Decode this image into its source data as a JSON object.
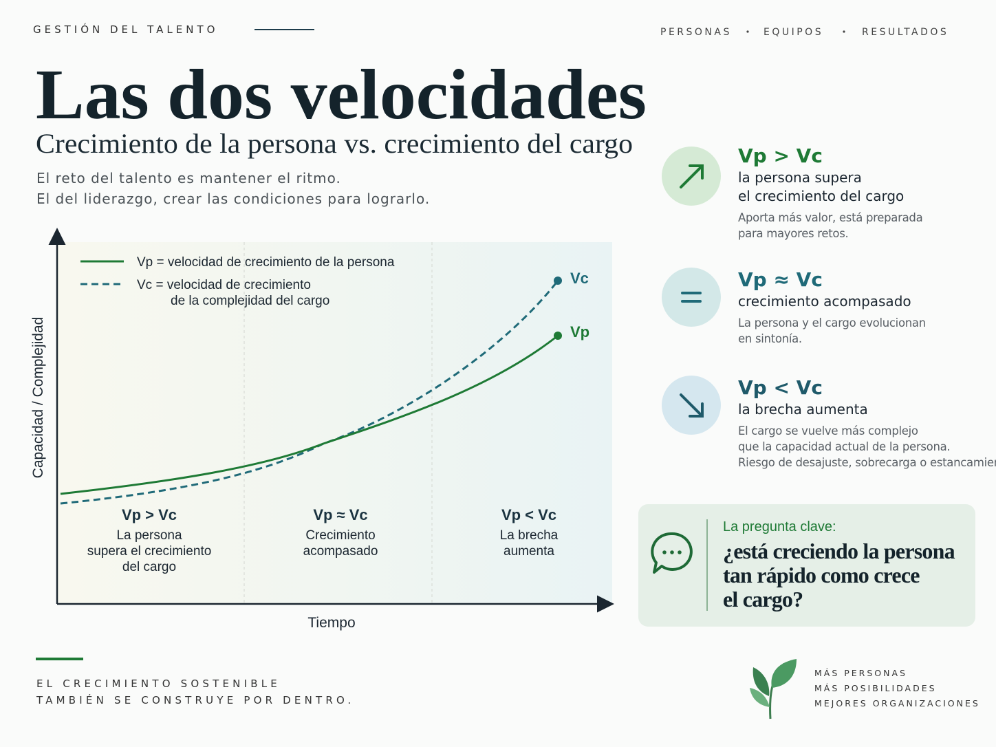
{
  "header": {
    "kicker": "GESTIÓN DEL TALENTO",
    "tags": [
      "PERSONAS",
      "EQUIPOS",
      "RESULTADOS"
    ],
    "title": "Las dos velocidades",
    "subtitle": "Crecimiento de la persona vs. crecimiento del cargo",
    "intro": [
      "El reto del talento es mantener el ritmo.",
      "El del liderazgo, crear las condiciones para lograrlo."
    ]
  },
  "chart": {
    "legend": [
      [
        "Vp = velocidad de crecimiento de la persona"
      ],
      [
        "Vc = velocidad de crecimiento",
        "de la complejidad del cargo"
      ]
    ],
    "end_labels": [
      "Vc",
      "Vp"
    ],
    "y_label": "Capacidad / Complejidad",
    "x_label": "Tiempo",
    "zones": [
      {
        "title": "Vp > Vc",
        "lines": [
          "La persona",
          "supera el crecimiento",
          "del cargo"
        ]
      },
      {
        "title": "Vp ≈ Vc",
        "lines": [
          "Crecimiento",
          "acompasado"
        ]
      },
      {
        "title": "Vp < Vc",
        "lines": [
          "La brecha",
          "aumenta"
        ]
      }
    ]
  },
  "cards": [
    {
      "heading": "Vp > Vc",
      "subtitle": [
        "la persona supera",
        "el crecimiento del cargo"
      ],
      "description": [
        "Aporta más valor, está preparada",
        "para mayores retos."
      ]
    },
    {
      "heading": "Vp ≈ Vc",
      "subtitle": [
        "crecimiento acompasado"
      ],
      "description": [
        "La persona y el cargo evolucionan",
        "en sintonía."
      ]
    },
    {
      "heading": "Vp < Vc",
      "subtitle": [
        "la brecha aumenta"
      ],
      "description": [
        "El cargo se vuelve más complejo",
        "que la capacidad actual de la persona.",
        "Riesgo de desajuste, sobrecarga o estancamiento."
      ]
    }
  ],
  "question": {
    "label": "La pregunta clave:",
    "lines": [
      "¿está creciendo la persona",
      "tan rápido como crece",
      "el cargo?"
    ]
  },
  "footer": {
    "tagline": [
      "EL CRECIMIENTO SOSTENIBLE",
      "TAMBIÉN SE CONSTRUYE POR DENTRO."
    ],
    "motto": [
      "MÁS PERSONAS",
      "MÁS POSIBILIDADES",
      "MEJORES ORGANIZACIONES"
    ]
  }
}
